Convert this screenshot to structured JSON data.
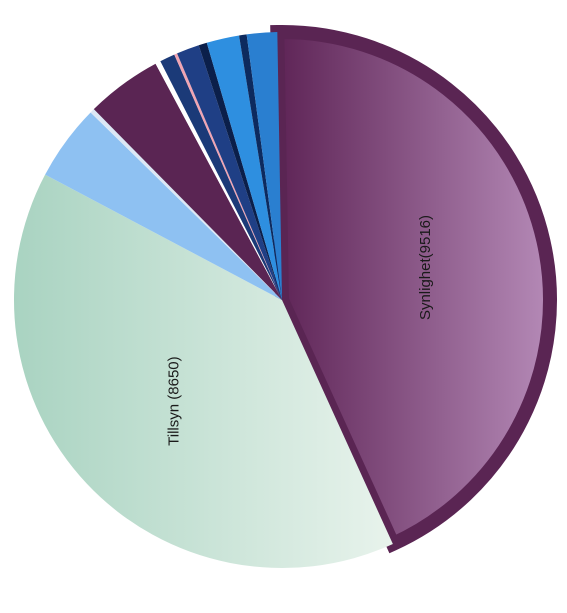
{
  "chart_data": {
    "type": "pie",
    "title": "",
    "legend": "none",
    "slices": [
      {
        "value": 9516,
        "color": "#6d3566",
        "label": "Synlighet(9516)"
      },
      {
        "value": 8650,
        "color": "#c7e3d6",
        "label": "Tillsyn (8650)"
      },
      {
        "value": 1005,
        "color": "#8ec1f2",
        "label": ""
      },
      {
        "value": 60,
        "color": "#dce8f5",
        "label": ""
      },
      {
        "value": 1000,
        "color": "#5a2553",
        "label": ""
      },
      {
        "value": 70,
        "color": "#ffffff",
        "label": ""
      },
      {
        "value": 200,
        "color": "#1b3a78",
        "label": ""
      },
      {
        "value": 40,
        "color": "#f0a5b3",
        "label": ""
      },
      {
        "value": 300,
        "color": "#1f3f85",
        "label": ""
      },
      {
        "value": 110,
        "color": "#0b1f4a",
        "label": ""
      },
      {
        "value": 430,
        "color": "#2e8fe0",
        "label": ""
      },
      {
        "value": 100,
        "color": "#0d2a5e",
        "label": ""
      },
      {
        "value": 400,
        "color": "#2a7fd0",
        "label": ""
      }
    ]
  }
}
